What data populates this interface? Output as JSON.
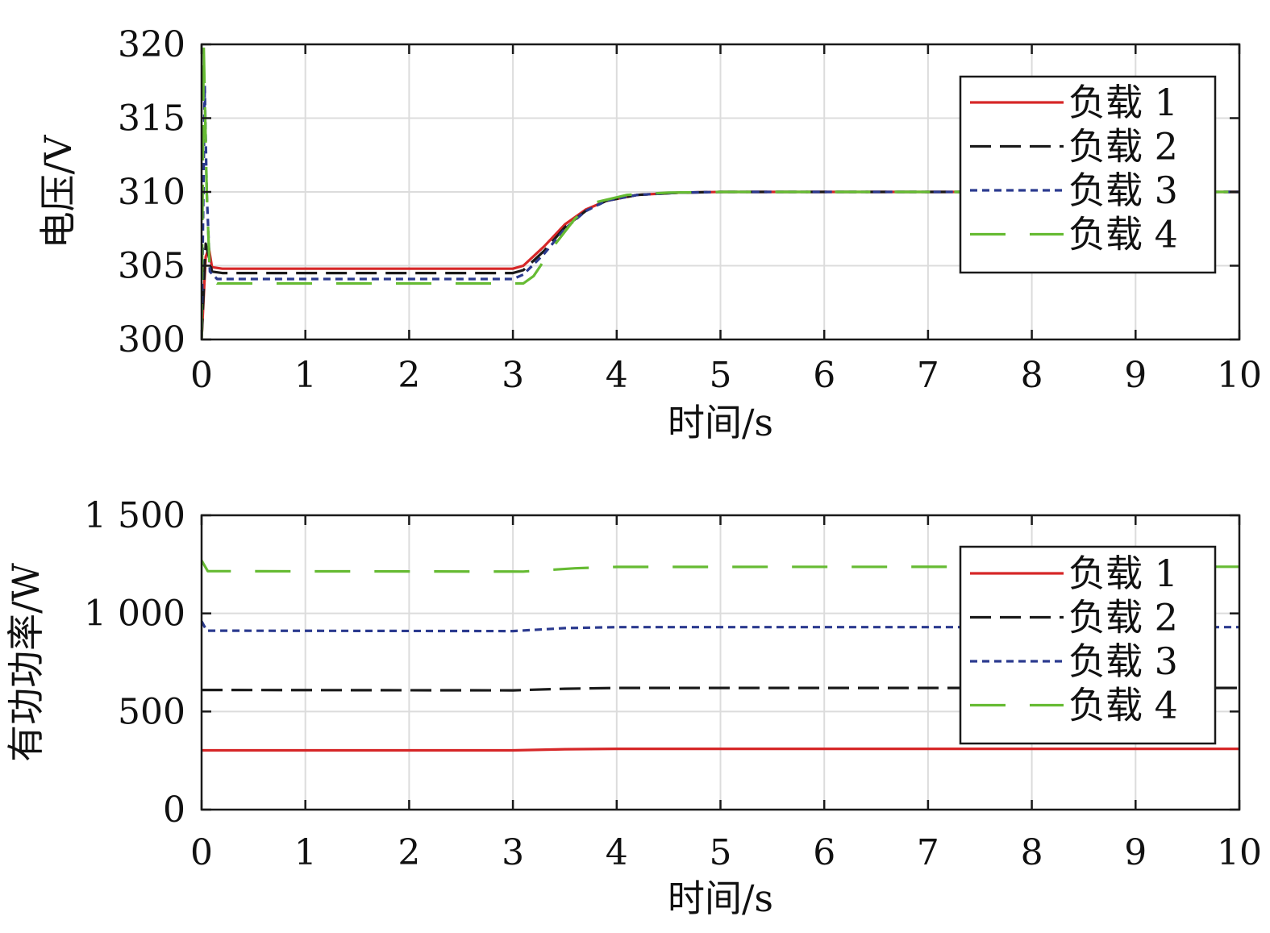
{
  "chart_data": [
    {
      "type": "line",
      "xlabel": "时间/s",
      "ylabel": "电压/V",
      "xlim": [
        0,
        10
      ],
      "ylim": [
        300,
        320
      ],
      "xticks": [
        "0",
        "1",
        "2",
        "3",
        "4",
        "5",
        "6",
        "7",
        "8",
        "9",
        "10"
      ],
      "yticks": [
        "300",
        "305",
        "310",
        "315",
        "320"
      ],
      "ytick_values": [
        300,
        305,
        310,
        315,
        320
      ],
      "grid": true,
      "legend_position": "top-right",
      "series": [
        {
          "name": "负载 1",
          "color": "#d62728",
          "dash": "solid",
          "points": [
            [
              0,
              300
            ],
            [
              0.04,
              305.6
            ],
            [
              0.07,
              306.2
            ],
            [
              0.1,
              304.9
            ],
            [
              0.2,
              304.8
            ],
            [
              3.0,
              304.8
            ],
            [
              3.1,
              305.0
            ],
            [
              3.3,
              306.3
            ],
            [
              3.5,
              307.8
            ],
            [
              3.7,
              308.8
            ],
            [
              3.9,
              309.4
            ],
            [
              4.2,
              309.8
            ],
            [
              4.6,
              309.95
            ],
            [
              5.0,
              310.0
            ],
            [
              10.0,
              310.0
            ]
          ]
        },
        {
          "name": "负载 2",
          "color": "#1a1a1a",
          "dash": "26,11",
          "points": [
            [
              0,
              300
            ],
            [
              0.04,
              306.5
            ],
            [
              0.07,
              305.6
            ],
            [
              0.1,
              304.6
            ],
            [
              0.2,
              304.5
            ],
            [
              3.0,
              304.5
            ],
            [
              3.1,
              304.7
            ],
            [
              3.3,
              306.0
            ],
            [
              3.5,
              307.6
            ],
            [
              3.7,
              308.7
            ],
            [
              3.9,
              309.4
            ],
            [
              4.2,
              309.8
            ],
            [
              4.6,
              309.95
            ],
            [
              5.0,
              310.0
            ],
            [
              10.0,
              310.0
            ]
          ]
        },
        {
          "name": "负载 3",
          "color": "#2b3a8f",
          "dash": "9,6",
          "points": [
            [
              0,
              300
            ],
            [
              0.03,
              317.2
            ],
            [
              0.05,
              310.0
            ],
            [
              0.08,
              304.6
            ],
            [
              0.15,
              304.1
            ],
            [
              3.0,
              304.1
            ],
            [
              3.1,
              304.4
            ],
            [
              3.3,
              305.8
            ],
            [
              3.5,
              307.5
            ],
            [
              3.7,
              308.7
            ],
            [
              3.9,
              309.4
            ],
            [
              4.2,
              309.8
            ],
            [
              4.6,
              309.95
            ],
            [
              5.0,
              310.0
            ],
            [
              10.0,
              310.0
            ]
          ]
        },
        {
          "name": "负载 4",
          "color": "#66bb33",
          "dash": "44,30",
          "points": [
            [
              0,
              300
            ],
            [
              0.02,
              320
            ],
            [
              0.05,
              310.0
            ],
            [
              0.08,
              304.3
            ],
            [
              0.15,
              303.8
            ],
            [
              3.1,
              303.8
            ],
            [
              3.2,
              304.3
            ],
            [
              3.4,
              306.4
            ],
            [
              3.6,
              308.2
            ],
            [
              3.8,
              309.3
            ],
            [
              4.1,
              309.8
            ],
            [
              4.5,
              309.95
            ],
            [
              5.0,
              310.0
            ],
            [
              10.0,
              310.0
            ]
          ]
        }
      ]
    },
    {
      "type": "line",
      "xlabel": "时间/s",
      "ylabel": "有功功率/W",
      "xlim": [
        0,
        10
      ],
      "ylim": [
        0,
        1500
      ],
      "xticks": [
        "0",
        "1",
        "2",
        "3",
        "4",
        "5",
        "6",
        "7",
        "8",
        "9",
        "10"
      ],
      "yticks": [
        "0",
        "500",
        "1 000",
        "1 500"
      ],
      "ytick_values": [
        0,
        500,
        1000,
        1500
      ],
      "grid": true,
      "legend_position": "top-right",
      "series": [
        {
          "name": "负载 1",
          "color": "#d62728",
          "dash": "solid",
          "points": [
            [
              0,
              302
            ],
            [
              3.0,
              302
            ],
            [
              3.5,
              308
            ],
            [
              4.0,
              310
            ],
            [
              10.0,
              310
            ]
          ]
        },
        {
          "name": "负载 2",
          "color": "#1a1a1a",
          "dash": "26,11",
          "points": [
            [
              0,
              610
            ],
            [
              3.0,
              608
            ],
            [
              3.5,
              616
            ],
            [
              4.0,
              620
            ],
            [
              10.0,
              620
            ]
          ]
        },
        {
          "name": "负载 3",
          "color": "#2b3a8f",
          "dash": "9,6",
          "points": [
            [
              0,
              960
            ],
            [
              0.05,
              912
            ],
            [
              3.0,
              910
            ],
            [
              3.5,
              925
            ],
            [
              4.0,
              930
            ],
            [
              10.0,
              930
            ]
          ]
        },
        {
          "name": "负载 4",
          "color": "#66bb33",
          "dash": "44,30",
          "points": [
            [
              0,
              1270
            ],
            [
              0.06,
              1215
            ],
            [
              3.1,
              1213
            ],
            [
              3.6,
              1230
            ],
            [
              4.0,
              1237
            ],
            [
              10.0,
              1238
            ]
          ]
        }
      ]
    }
  ]
}
